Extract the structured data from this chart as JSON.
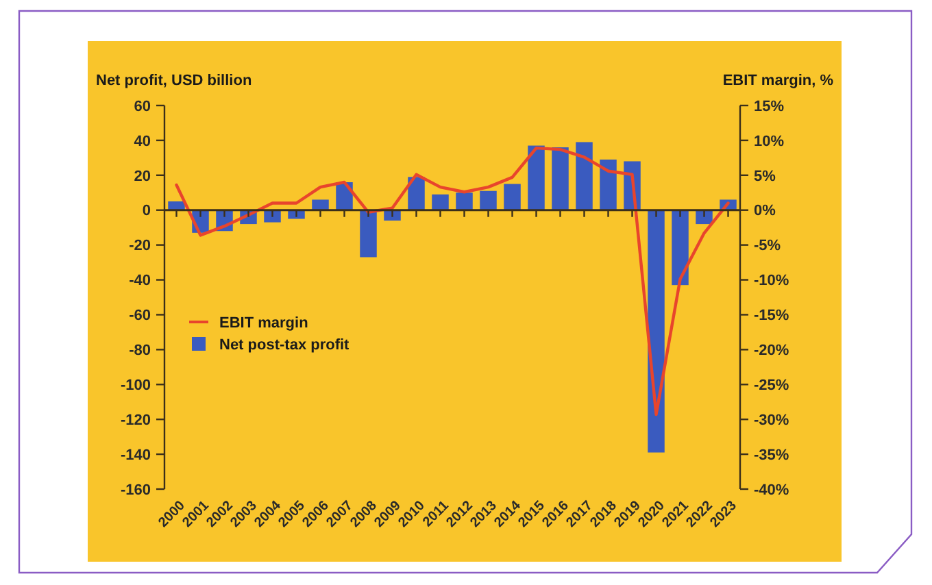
{
  "chart_data": {
    "type": "bar",
    "ylabel": "Net profit, USD billion",
    "y2label": "EBIT margin, %",
    "categories": [
      "2000",
      "2001",
      "2002",
      "2003",
      "2004",
      "2005",
      "2006",
      "2007",
      "2008",
      "2009",
      "2010",
      "2011",
      "2012",
      "2013",
      "2014",
      "2015",
      "2016",
      "2017",
      "2018",
      "2019",
      "2020",
      "2021",
      "2022",
      "2023"
    ],
    "series": [
      {
        "name": "EBIT margin",
        "type": "line",
        "axis": "y2",
        "color": "#e8452c",
        "values": [
          3.6,
          -3.6,
          -2.3,
          -0.7,
          1,
          1,
          3.3,
          4,
          -0.3,
          0.3,
          5.1,
          3.3,
          2.6,
          3.3,
          4.7,
          8.9,
          8.7,
          7.6,
          5.6,
          5.1,
          -29.3,
          -9.9,
          -3.3,
          1
        ]
      },
      {
        "name": "Net post-tax profit",
        "color": "#3a5bbf",
        "values": [
          5,
          -13,
          -12,
          -8,
          -7,
          -5,
          6,
          16,
          -27,
          -6,
          19,
          9,
          10,
          11,
          15,
          37,
          36,
          39,
          29,
          28,
          -139,
          -43,
          -8,
          6
        ]
      }
    ],
    "ylim": [
      -160,
      60
    ],
    "yticks": [
      -160,
      -140,
      -120,
      -100,
      -80,
      -60,
      -40,
      -20,
      0,
      20,
      40,
      60
    ],
    "y2lim": [
      -40,
      15
    ],
    "y2ticks": [
      {
        "value": -40,
        "label": "-40%"
      },
      {
        "value": -35,
        "label": "-35%"
      },
      {
        "value": -30,
        "label": "-30%"
      },
      {
        "value": -25,
        "label": "-25%"
      },
      {
        "value": -20,
        "label": "-20%"
      },
      {
        "value": -15,
        "label": "-15%"
      },
      {
        "value": -10,
        "label": "-10%"
      },
      {
        "value": -5,
        "label": "-5%"
      },
      {
        "value": 0,
        "label": "0%"
      },
      {
        "value": 5,
        "label": "5%"
      },
      {
        "value": 10,
        "label": "10%"
      },
      {
        "value": 15,
        "label": "15%"
      }
    ],
    "legend": "left"
  }
}
